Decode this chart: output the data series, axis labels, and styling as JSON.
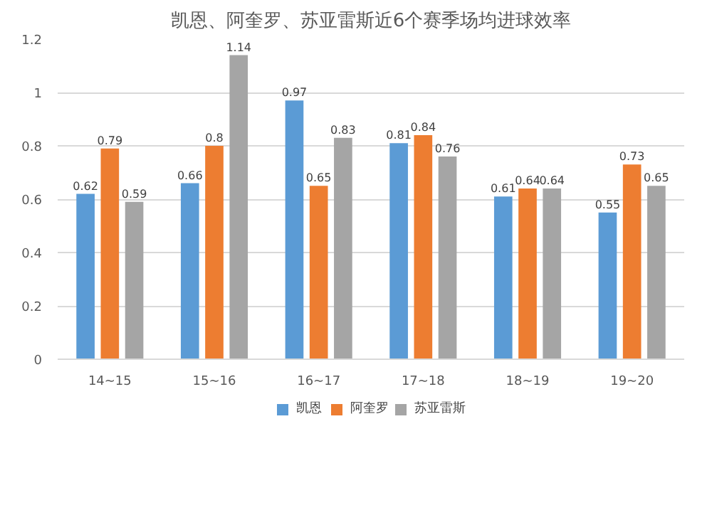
{
  "chart_data": {
    "type": "bar",
    "title": "凯恩、阿奎罗、苏亚雷斯近6个赛季场均进球效率",
    "categories": [
      "14~15",
      "15~16",
      "16~17",
      "17~18",
      "18~19",
      "19~20"
    ],
    "series": [
      {
        "name": "凯恩",
        "color": "#5b9bd5",
        "values": [
          0.62,
          0.66,
          0.97,
          0.81,
          0.61,
          0.55
        ]
      },
      {
        "name": "阿奎罗",
        "color": "#ed7d31",
        "values": [
          0.79,
          0.8,
          0.65,
          0.84,
          0.64,
          0.73
        ]
      },
      {
        "name": "苏亚雷斯",
        "color": "#a5a5a5",
        "values": [
          0.59,
          1.14,
          0.83,
          0.76,
          0.64,
          0.65
        ]
      }
    ],
    "ylim": [
      0,
      1.2
    ],
    "yticks": [
      0,
      {
        "value": 0.2,
        "label": "0.2"
      },
      {
        "value": 0.4,
        "label": "0.4"
      },
      {
        "value": 0.6,
        "label": "0.6"
      },
      {
        "value": 0.8,
        "label": "0.8"
      },
      1,
      {
        "value": 1.2,
        "label": "1.2"
      }
    ],
    "grid": "y",
    "legend": "bottom",
    "data_labels": true
  }
}
